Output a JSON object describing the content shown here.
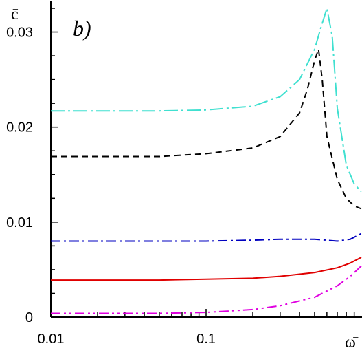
{
  "chart_data": {
    "type": "line",
    "panel_label": "b)",
    "ylabel": "c̄",
    "xlabel": "ω̄",
    "x_scale": "log",
    "xlim": [
      0.01,
      1.0
    ],
    "ylim": [
      0,
      0.0325
    ],
    "x_ticks": [
      0.01,
      0.1
    ],
    "x_tick_labels": [
      "0.01",
      "0.1"
    ],
    "y_ticks": [
      0,
      0.01,
      0.02,
      0.03
    ],
    "y_tick_labels": [
      "0",
      "0.01",
      "0.02",
      "0.03"
    ],
    "grid": false,
    "series": [
      {
        "color": "#40e0d0",
        "dash": "long-dash-dot",
        "x": [
          0.01,
          0.02,
          0.05,
          0.1,
          0.2,
          0.3,
          0.4,
          0.5,
          0.55,
          0.6,
          0.65,
          0.7,
          0.8,
          0.9,
          1.0
        ],
        "y": [
          0.0217,
          0.0217,
          0.0217,
          0.0218,
          0.0222,
          0.0232,
          0.025,
          0.0282,
          0.0305,
          0.0325,
          0.0295,
          0.022,
          0.016,
          0.014,
          0.0132
        ]
      },
      {
        "color": "#000000",
        "dash": "dashed",
        "x": [
          0.01,
          0.02,
          0.05,
          0.1,
          0.2,
          0.3,
          0.4,
          0.45,
          0.5,
          0.53,
          0.56,
          0.6,
          0.7,
          0.8,
          0.9,
          1.0
        ],
        "y": [
          0.0169,
          0.0169,
          0.0169,
          0.0172,
          0.0178,
          0.019,
          0.0215,
          0.024,
          0.027,
          0.0282,
          0.025,
          0.019,
          0.0145,
          0.0125,
          0.0117,
          0.0114
        ]
      },
      {
        "color": "#0000c0",
        "dash": "dash-dot",
        "x": [
          0.01,
          0.05,
          0.1,
          0.2,
          0.3,
          0.5,
          0.7,
          0.85,
          1.0
        ],
        "y": [
          0.008,
          0.008,
          0.008,
          0.0081,
          0.0082,
          0.0082,
          0.008,
          0.0082,
          0.0088
        ]
      },
      {
        "color": "#e00000",
        "dash": "solid",
        "x": [
          0.01,
          0.05,
          0.1,
          0.2,
          0.3,
          0.5,
          0.7,
          0.85,
          1.0
        ],
        "y": [
          0.0039,
          0.0039,
          0.004,
          0.0041,
          0.0043,
          0.0047,
          0.0052,
          0.0057,
          0.0063
        ]
      },
      {
        "color": "#e000e0",
        "dash": "dash-dot-dot",
        "x": [
          0.01,
          0.05,
          0.1,
          0.2,
          0.3,
          0.5,
          0.7,
          0.85,
          1.0
        ],
        "y": [
          0.0004,
          0.0004,
          0.0005,
          0.0008,
          0.0012,
          0.0021,
          0.0033,
          0.0043,
          0.0054
        ]
      }
    ]
  }
}
